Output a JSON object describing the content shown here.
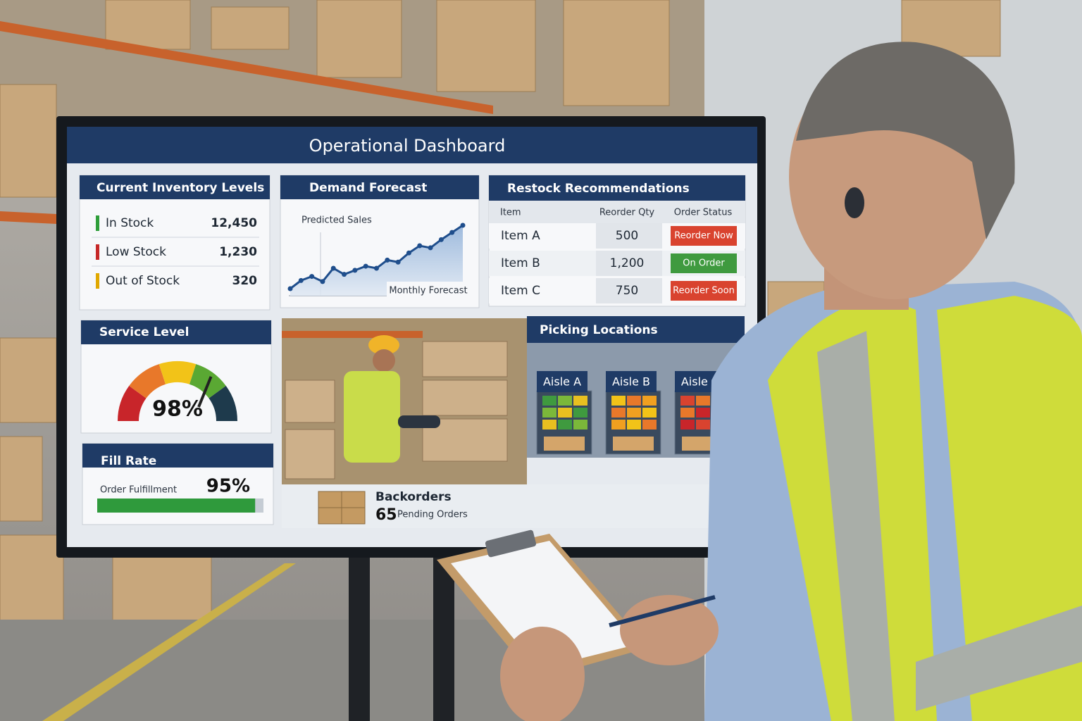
{
  "dashboard": {
    "title": "Operational Dashboard"
  },
  "inventory": {
    "title": "Current Inventory Levels",
    "rows": [
      {
        "label": "In Stock",
        "value": "12,450",
        "color": "#2e9e3a"
      },
      {
        "label": "Low Stock",
        "value": "1,230",
        "color": "#c62828"
      },
      {
        "label": "Out of Stock",
        "value": "320",
        "color": "#e0a800"
      }
    ]
  },
  "forecast": {
    "title": "Demand Forecast",
    "subtitle": "Predicted Sales",
    "legend": "Monthly Forecast",
    "values": [
      10,
      18,
      22,
      17,
      30,
      24,
      28,
      32,
      30,
      38,
      36,
      45,
      52,
      50,
      58,
      65,
      72
    ]
  },
  "restock": {
    "title": "Restock Recommendations",
    "columns": [
      "Item",
      "Reorder Qty",
      "Order Status"
    ],
    "rows": [
      {
        "item": "Item A",
        "qty": "500",
        "status": "Reorder Now",
        "color": "#d9432f"
      },
      {
        "item": "Item B",
        "qty": "1,200",
        "status": "On Order",
        "color": "#3f9a3f"
      },
      {
        "item": "Item C",
        "qty": "750",
        "status": "Reorder Soon",
        "color": "#d9432f"
      }
    ]
  },
  "service_level": {
    "title": "Service Level",
    "value": 98,
    "value_label": "98%"
  },
  "fill_rate": {
    "title": "Fill Rate",
    "label": "Order Fulfillment",
    "value": 95,
    "value_label": "95%"
  },
  "picking": {
    "title": "Picking Locations",
    "aisles": [
      "Aisle A",
      "Aisle B",
      "Aisle C"
    ]
  },
  "backorders": {
    "title": "Backorders",
    "count": "65",
    "label": "Pending Orders"
  }
}
